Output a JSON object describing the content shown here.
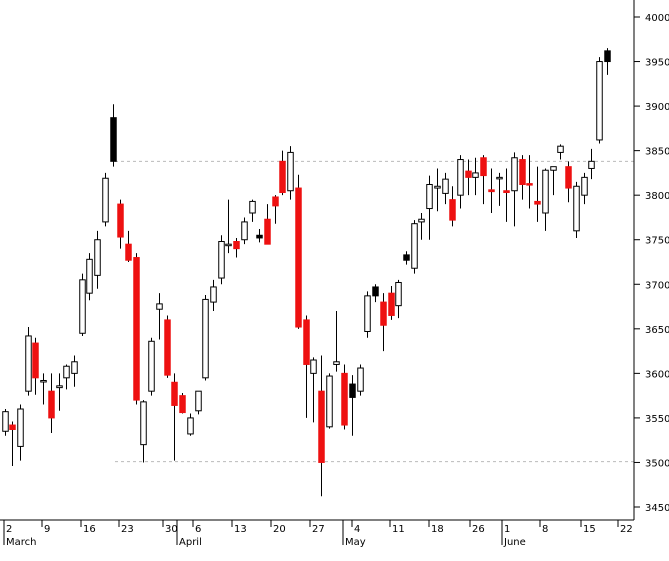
{
  "chart_data": {
    "type": "candlestick",
    "y_axis": {
      "ticks": [
        3450,
        3500,
        3550,
        3600,
        3650,
        3700,
        3750,
        3800,
        3850,
        3900,
        3950,
        4000
      ],
      "position": "right"
    },
    "x_axis": {
      "day_labels": [
        "2",
        "9",
        "16",
        "23",
        "30",
        "6",
        "13",
        "20",
        "27",
        "4",
        "11",
        "18",
        "26",
        "1",
        "8",
        "15",
        "22"
      ],
      "month_labels": [
        "March",
        "April",
        "May",
        "June"
      ]
    },
    "reference_lines": [
      3838,
      3501
    ],
    "colors": {
      "up": "#ffffff",
      "down_red": "#ee1111",
      "down_black": "#000000",
      "wick": "#000000",
      "grid": "#bbbbbb"
    },
    "candles": [
      {
        "o": 3535,
        "h": 3560,
        "l": 3530,
        "c": 3557,
        "color": "white"
      },
      {
        "o": 3542,
        "h": 3546,
        "l": 3496,
        "c": 3537,
        "color": "red"
      },
      {
        "o": 3518,
        "h": 3565,
        "l": 3502,
        "c": 3560,
        "color": "white"
      },
      {
        "o": 3580,
        "h": 3652,
        "l": 3575,
        "c": 3642,
        "color": "white"
      },
      {
        "o": 3634,
        "h": 3640,
        "l": 3576,
        "c": 3595,
        "color": "red"
      },
      {
        "o": 3592,
        "h": 3600,
        "l": 3565,
        "c": 3592,
        "color": "white"
      },
      {
        "o": 3580,
        "h": 3600,
        "l": 3533,
        "c": 3550,
        "color": "red"
      },
      {
        "o": 3584,
        "h": 3600,
        "l": 3558,
        "c": 3586,
        "color": "white"
      },
      {
        "o": 3595,
        "h": 3610,
        "l": 3582,
        "c": 3608,
        "color": "white"
      },
      {
        "o": 3600,
        "h": 3620,
        "l": 3585,
        "c": 3613,
        "color": "white"
      },
      {
        "o": 3645,
        "h": 3712,
        "l": 3642,
        "c": 3705,
        "color": "white"
      },
      {
        "o": 3690,
        "h": 3735,
        "l": 3682,
        "c": 3728,
        "color": "white"
      },
      {
        "o": 3710,
        "h": 3760,
        "l": 3695,
        "c": 3750,
        "color": "white"
      },
      {
        "o": 3770,
        "h": 3825,
        "l": 3765,
        "c": 3819,
        "color": "white"
      },
      {
        "o": 3887,
        "h": 3902,
        "l": 3832,
        "c": 3838,
        "color": "black"
      },
      {
        "o": 3790,
        "h": 3795,
        "l": 3740,
        "c": 3753,
        "color": "red"
      },
      {
        "o": 3745,
        "h": 3760,
        "l": 3725,
        "c": 3727,
        "color": "red"
      },
      {
        "o": 3730,
        "h": 3735,
        "l": 3565,
        "c": 3570,
        "color": "red"
      },
      {
        "o": 3520,
        "h": 3570,
        "l": 3500,
        "c": 3568,
        "color": "white"
      },
      {
        "o": 3580,
        "h": 3640,
        "l": 3575,
        "c": 3636,
        "color": "white"
      },
      {
        "o": 3672,
        "h": 3690,
        "l": 3638,
        "c": 3678,
        "color": "white"
      },
      {
        "o": 3660,
        "h": 3665,
        "l": 3595,
        "c": 3598,
        "color": "red"
      },
      {
        "o": 3590,
        "h": 3600,
        "l": 3502,
        "c": 3564,
        "color": "red"
      },
      {
        "o": 3575,
        "h": 3578,
        "l": 3555,
        "c": 3556,
        "color": "red"
      },
      {
        "o": 3550,
        "h": 3555,
        "l": 3530,
        "c": 3532,
        "color": "white"
      },
      {
        "o": 3558,
        "h": 3580,
        "l": 3554,
        "c": 3580,
        "color": "white"
      },
      {
        "o": 3595,
        "h": 3688,
        "l": 3592,
        "c": 3683,
        "color": "white"
      },
      {
        "o": 3680,
        "h": 3705,
        "l": 3670,
        "c": 3697,
        "color": "white"
      },
      {
        "o": 3707,
        "h": 3755,
        "l": 3700,
        "c": 3748,
        "color": "white"
      },
      {
        "o": 3745,
        "h": 3795,
        "l": 3735,
        "c": 3745,
        "color": "white"
      },
      {
        "o": 3748,
        "h": 3752,
        "l": 3730,
        "c": 3740,
        "color": "red"
      },
      {
        "o": 3750,
        "h": 3775,
        "l": 3745,
        "c": 3770,
        "color": "white"
      },
      {
        "o": 3780,
        "h": 3795,
        "l": 3770,
        "c": 3793,
        "color": "white"
      },
      {
        "o": 3755,
        "h": 3762,
        "l": 3747,
        "c": 3752,
        "color": "black"
      },
      {
        "o": 3773,
        "h": 3790,
        "l": 3745,
        "c": 3745,
        "color": "red"
      },
      {
        "o": 3788,
        "h": 3800,
        "l": 3768,
        "c": 3798,
        "color": "red"
      },
      {
        "o": 3838,
        "h": 3850,
        "l": 3800,
        "c": 3803,
        "color": "red"
      },
      {
        "o": 3805,
        "h": 3855,
        "l": 3795,
        "c": 3848,
        "color": "white"
      },
      {
        "o": 3808,
        "h": 3823,
        "l": 3650,
        "c": 3652,
        "color": "red"
      },
      {
        "o": 3660,
        "h": 3665,
        "l": 3550,
        "c": 3610,
        "color": "red"
      },
      {
        "o": 3600,
        "h": 3618,
        "l": 3545,
        "c": 3615,
        "color": "white"
      },
      {
        "o": 3580,
        "h": 3620,
        "l": 3462,
        "c": 3500,
        "color": "red"
      },
      {
        "o": 3540,
        "h": 3600,
        "l": 3538,
        "c": 3597,
        "color": "white"
      },
      {
        "o": 3610,
        "h": 3670,
        "l": 3602,
        "c": 3613,
        "color": "white"
      },
      {
        "o": 3600,
        "h": 3610,
        "l": 3537,
        "c": 3542,
        "color": "red"
      },
      {
        "o": 3588,
        "h": 3598,
        "l": 3530,
        "c": 3573,
        "color": "black"
      },
      {
        "o": 3580,
        "h": 3610,
        "l": 3575,
        "c": 3606,
        "color": "white"
      },
      {
        "o": 3647,
        "h": 3692,
        "l": 3640,
        "c": 3687,
        "color": "white"
      },
      {
        "o": 3697,
        "h": 3700,
        "l": 3680,
        "c": 3687,
        "color": "black"
      },
      {
        "o": 3680,
        "h": 3690,
        "l": 3625,
        "c": 3654,
        "color": "red"
      },
      {
        "o": 3690,
        "h": 3698,
        "l": 3660,
        "c": 3665,
        "color": "red"
      },
      {
        "o": 3676,
        "h": 3705,
        "l": 3662,
        "c": 3702,
        "color": "white"
      },
      {
        "o": 3733,
        "h": 3737,
        "l": 3722,
        "c": 3727,
        "color": "black"
      },
      {
        "o": 3718,
        "h": 3772,
        "l": 3712,
        "c": 3768,
        "color": "white"
      },
      {
        "o": 3770,
        "h": 3780,
        "l": 3750,
        "c": 3773,
        "color": "white"
      },
      {
        "o": 3785,
        "h": 3822,
        "l": 3750,
        "c": 3812,
        "color": "white"
      },
      {
        "o": 3810,
        "h": 3830,
        "l": 3782,
        "c": 3808,
        "color": "white"
      },
      {
        "o": 3802,
        "h": 3825,
        "l": 3790,
        "c": 3818,
        "color": "white"
      },
      {
        "o": 3795,
        "h": 3810,
        "l": 3765,
        "c": 3772,
        "color": "red"
      },
      {
        "o": 3800,
        "h": 3845,
        "l": 3785,
        "c": 3840,
        "color": "white"
      },
      {
        "o": 3827,
        "h": 3840,
        "l": 3800,
        "c": 3820,
        "color": "red"
      },
      {
        "o": 3820,
        "h": 3842,
        "l": 3800,
        "c": 3825,
        "color": "white"
      },
      {
        "o": 3842,
        "h": 3845,
        "l": 3790,
        "c": 3822,
        "color": "red"
      },
      {
        "o": 3806,
        "h": 3830,
        "l": 3780,
        "c": 3804,
        "color": "red"
      },
      {
        "o": 3820,
        "h": 3825,
        "l": 3788,
        "c": 3820,
        "color": "white"
      },
      {
        "o": 3805,
        "h": 3830,
        "l": 3770,
        "c": 3803,
        "color": "red"
      },
      {
        "o": 3805,
        "h": 3848,
        "l": 3765,
        "c": 3842,
        "color": "white"
      },
      {
        "o": 3840,
        "h": 3845,
        "l": 3795,
        "c": 3812,
        "color": "red"
      },
      {
        "o": 3813,
        "h": 3845,
        "l": 3785,
        "c": 3813,
        "color": "red"
      },
      {
        "o": 3790,
        "h": 3832,
        "l": 3770,
        "c": 3793,
        "color": "red"
      },
      {
        "o": 3780,
        "h": 3830,
        "l": 3760,
        "c": 3828,
        "color": "white"
      },
      {
        "o": 3828,
        "h": 3832,
        "l": 3800,
        "c": 3832,
        "color": "white"
      },
      {
        "o": 3848,
        "h": 3857,
        "l": 3840,
        "c": 3855,
        "color": "white"
      },
      {
        "o": 3832,
        "h": 3838,
        "l": 3792,
        "c": 3808,
        "color": "red"
      },
      {
        "o": 3760,
        "h": 3815,
        "l": 3752,
        "c": 3810,
        "color": "white"
      },
      {
        "o": 3800,
        "h": 3825,
        "l": 3790,
        "c": 3820,
        "color": "white"
      },
      {
        "o": 3830,
        "h": 3852,
        "l": 3818,
        "c": 3838,
        "color": "white"
      },
      {
        "o": 3862,
        "h": 3955,
        "l": 3858,
        "c": 3950,
        "color": "white"
      },
      {
        "o": 3962,
        "h": 3965,
        "l": 3935,
        "c": 3950,
        "color": "black"
      }
    ]
  }
}
